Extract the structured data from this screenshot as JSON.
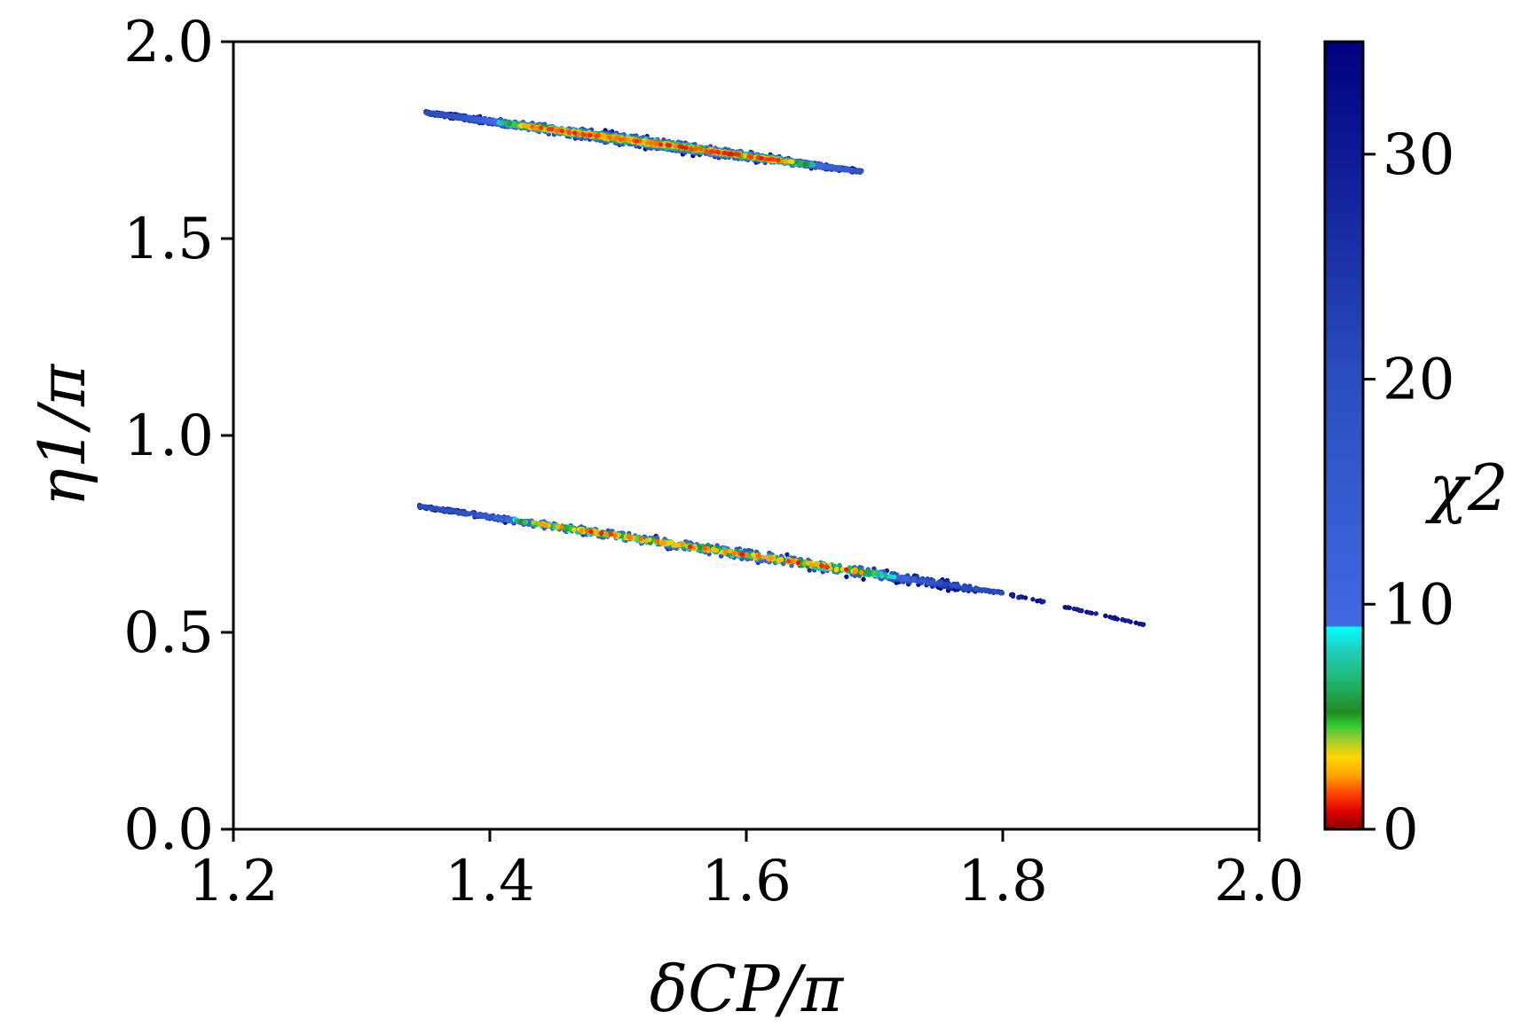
{
  "chart_data": {
    "type": "scatter",
    "title": "",
    "xlabel": "δCP/π",
    "ylabel": "η1/π",
    "xlim": [
      1.2,
      2.0
    ],
    "ylim": [
      0.0,
      2.0
    ],
    "x_ticks": [
      "1.2",
      "1.4",
      "1.6",
      "1.8",
      "2.0"
    ],
    "y_ticks": [
      "0.0",
      "0.5",
      "1.0",
      "1.5",
      "2.0"
    ],
    "grid": false,
    "legend": "none",
    "colorbar": {
      "label": "χ2",
      "range": [
        0,
        35
      ],
      "ticks": [
        "0",
        "10",
        "20",
        "30"
      ],
      "stops": [
        {
          "value": 0,
          "color": "#8b0000"
        },
        {
          "value": 0.8,
          "color": "#e00000"
        },
        {
          "value": 1.6,
          "color": "#ff4500"
        },
        {
          "value": 2.4,
          "color": "#ffa500"
        },
        {
          "value": 3.2,
          "color": "#ffd700"
        },
        {
          "value": 4.0,
          "color": "#9acd32"
        },
        {
          "value": 4.6,
          "color": "#32cd32"
        },
        {
          "value": 5.2,
          "color": "#228b22"
        },
        {
          "value": 6.5,
          "color": "#20b36b"
        },
        {
          "value": 8.0,
          "color": "#20d0c0"
        },
        {
          "value": 9.0,
          "color": "#00ffff"
        },
        {
          "value": 9.01,
          "color": "#4169e1"
        },
        {
          "value": 20,
          "color": "#2a4ec0"
        },
        {
          "value": 35,
          "color": "#000080"
        }
      ]
    },
    "series": [
      {
        "region": "upper",
        "x_range": [
          1.35,
          1.69
        ],
        "centerline": [
          [
            1.35,
            1.82
          ],
          [
            1.69,
            1.67
          ]
        ],
        "half_width": 0.012,
        "best_fit_x": [
          1.44,
          1.62
        ]
      },
      {
        "region": "lower",
        "x_range": [
          1.345,
          1.91
        ],
        "centerline": [
          [
            1.345,
            0.82
          ],
          [
            1.8,
            0.6
          ],
          [
            1.91,
            0.52
          ]
        ],
        "half_width": 0.012,
        "best_fit_x": [
          1.45,
          1.68
        ]
      }
    ]
  }
}
